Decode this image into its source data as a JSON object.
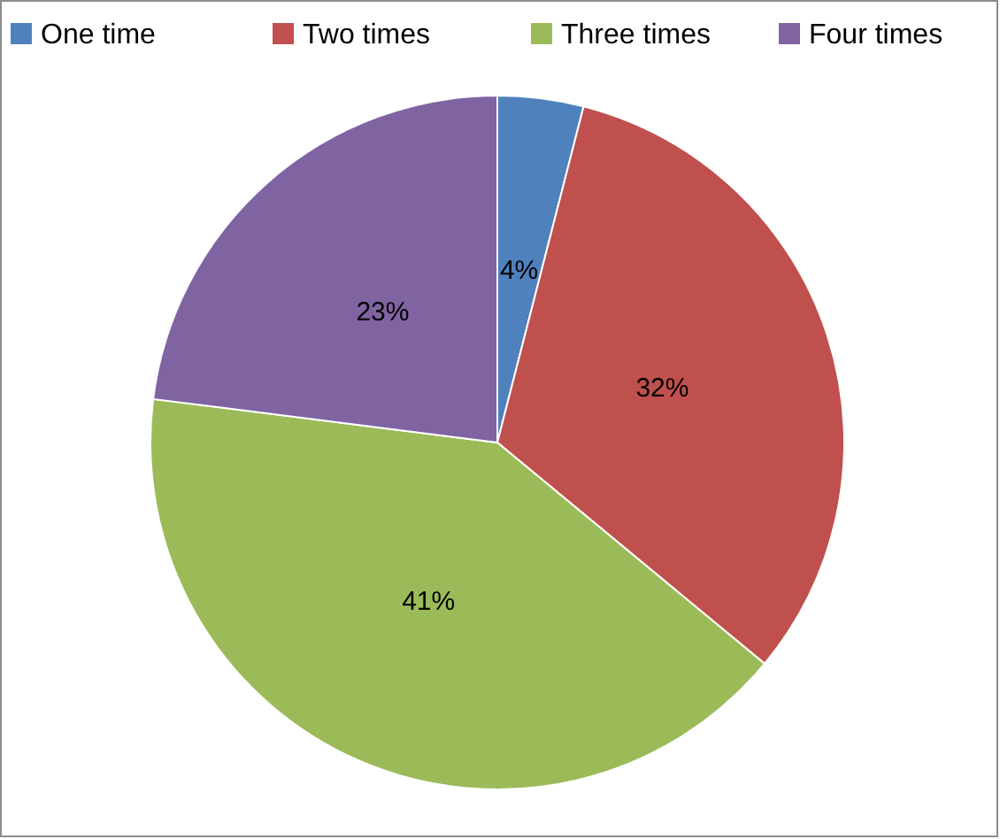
{
  "chart_data": {
    "type": "pie",
    "categories": [
      "One time",
      "Two times",
      "Three times",
      "Four times"
    ],
    "values": [
      4,
      32,
      41,
      23
    ],
    "colors": [
      "#4f81bd",
      "#c0504d",
      "#9bbb59",
      "#8064a2"
    ],
    "value_labels": [
      "4%",
      "32%",
      "41%",
      "23%"
    ],
    "legend": "top"
  }
}
